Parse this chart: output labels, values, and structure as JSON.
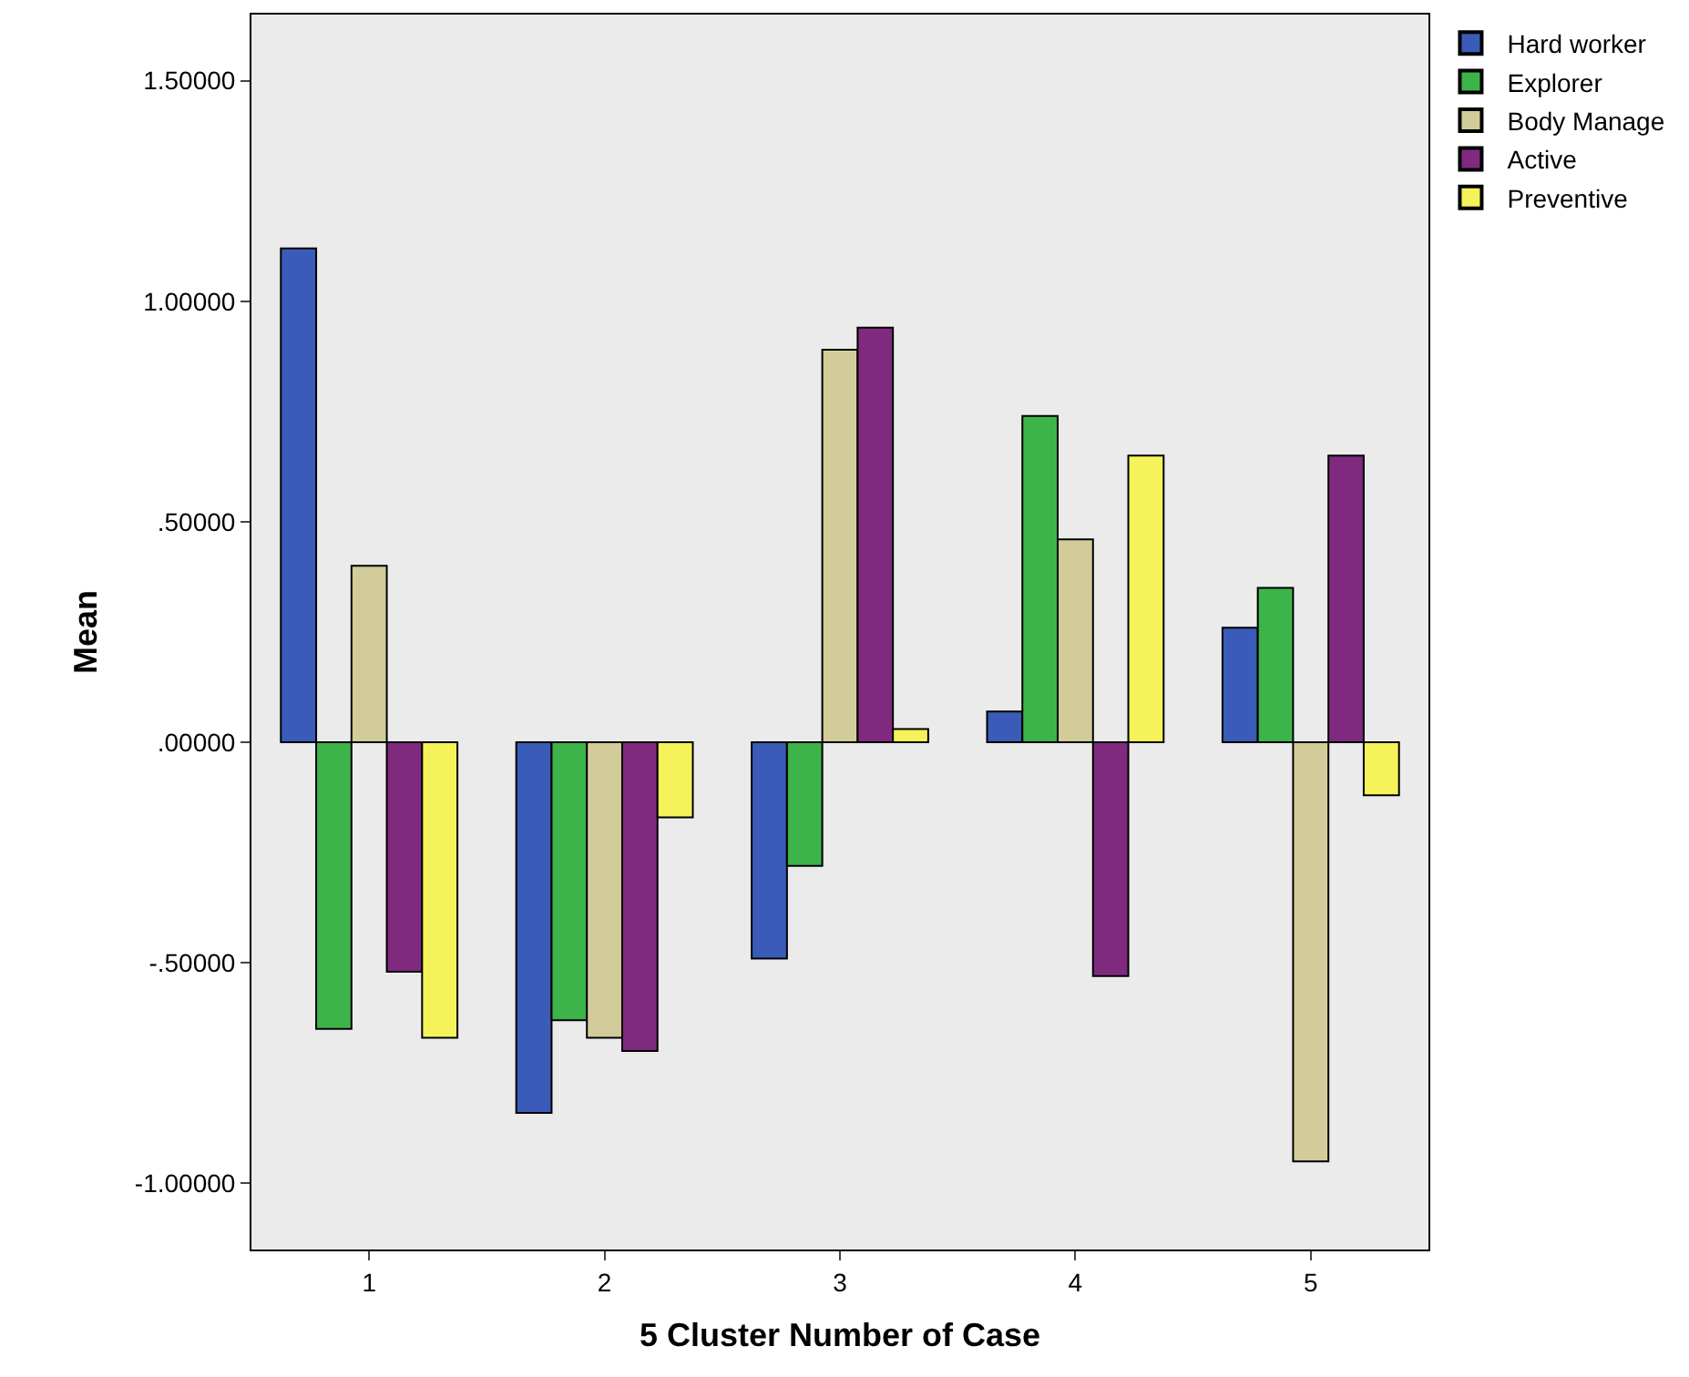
{
  "chart_data": {
    "type": "bar",
    "xlabel": "5 Cluster Number of Case",
    "ylabel": "Mean",
    "categories": [
      "1",
      "2",
      "3",
      "4",
      "5"
    ],
    "series": [
      {
        "name": "Hard worker",
        "color": "#3a5cb8",
        "values": [
          1.12,
          -0.84,
          -0.49,
          0.07,
          0.26
        ]
      },
      {
        "name": "Explorer",
        "color": "#3cb44a",
        "values": [
          -0.65,
          -0.63,
          -0.28,
          0.74,
          0.35
        ]
      },
      {
        "name": "Body Manage",
        "color": "#d2cc9a",
        "values": [
          0.4,
          -0.67,
          0.89,
          0.46,
          -0.95
        ]
      },
      {
        "name": "Active",
        "color": "#7f2a7f",
        "values": [
          -0.52,
          -0.7,
          0.94,
          -0.53,
          0.65
        ]
      },
      {
        "name": "Preventive",
        "color": "#f5f25a",
        "values": [
          -0.67,
          -0.17,
          0.03,
          0.65,
          -0.12
        ]
      }
    ],
    "ylim": [
      -1.15,
      1.65
    ],
    "yticks": [
      {
        "value": -1.0,
        "label": "-1.00000"
      },
      {
        "value": -0.5,
        "label": "-.50000"
      },
      {
        "value": 0,
        "label": ".00000"
      },
      {
        "value": 0.5,
        "label": ".50000"
      },
      {
        "value": 1.0,
        "label": "1.00000"
      },
      {
        "value": 1.5,
        "label": "1.50000"
      }
    ],
    "grid": false,
    "legend": "top right"
  }
}
